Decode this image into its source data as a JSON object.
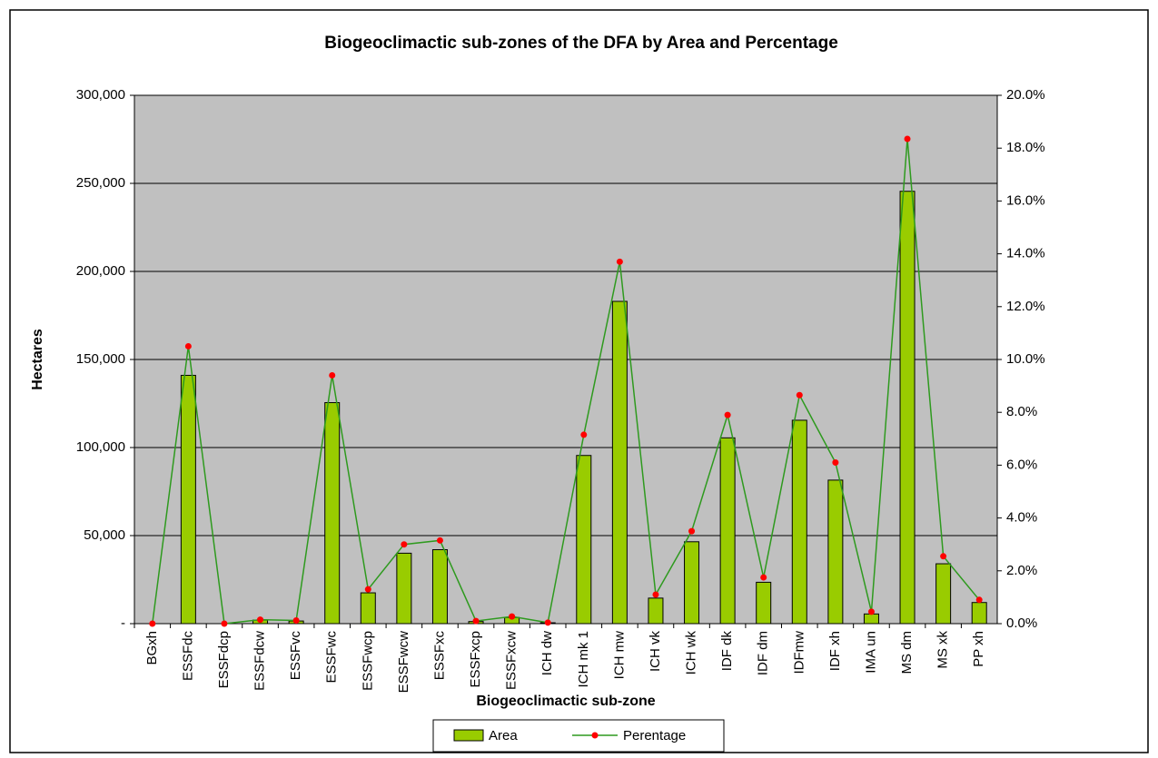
{
  "chart_data": {
    "type": "bar-line",
    "title": "Biogeoclimactic sub-zones of the DFA by Area and Percentage",
    "y_label": "Hectares",
    "x_label": "Biogeoclimactic sub-zone",
    "categories": [
      "BGxh",
      "ESSFdc",
      "ESSFdcp",
      "ESSFdcw",
      "ESSFvc",
      "ESSFwc",
      "ESSFwcp",
      "ESSFwcw",
      "ESSFxc",
      "ESSFxcp",
      "ESSFxcw",
      "ICH dw",
      "ICH mk 1",
      "ICH mw",
      "ICH vk",
      "ICH wk",
      "IDF dk",
      "IDF dm",
      "IDFmw",
      "IDF xh",
      "IMA un",
      "MS dm",
      "MS xk",
      "PP xh"
    ],
    "series": [
      {
        "name": "Area",
        "type": "bar",
        "color": "#99cc00",
        "values": [
          0,
          141000,
          0,
          2000,
          1500,
          125500,
          17500,
          40000,
          42000,
          1200,
          3500,
          500,
          95500,
          183000,
          14500,
          46500,
          105500,
          23500,
          115500,
          81500,
          5500,
          245500,
          34000,
          12000
        ]
      },
      {
        "name": "Perentage",
        "type": "line",
        "axis": "y2",
        "color": "#2e9a1e",
        "marker_color": "#ff0000",
        "values": [
          0,
          10.5,
          0,
          0.15,
          0.12,
          9.4,
          1.3,
          3.0,
          3.15,
          0.1,
          0.27,
          0.04,
          7.15,
          13.7,
          1.1,
          3.5,
          7.9,
          1.75,
          8.65,
          6.1,
          0.45,
          18.35,
          2.55,
          0.9
        ]
      }
    ],
    "ylim": [
      0,
      300000
    ],
    "yticks": [
      {
        "value": 0,
        "label": "-"
      },
      {
        "value": 50000,
        "label": "50,000"
      },
      {
        "value": 100000,
        "label": "100,000"
      },
      {
        "value": 150000,
        "label": "150,000"
      },
      {
        "value": 200000,
        "label": "200,000"
      },
      {
        "value": 250000,
        "label": "250,000"
      },
      {
        "value": 300000,
        "label": "300,000"
      }
    ],
    "y2lim": [
      0,
      20
    ],
    "y2ticks": [
      {
        "value": 0,
        "label": "0.0%"
      },
      {
        "value": 2,
        "label": "2.0%"
      },
      {
        "value": 4,
        "label": "4.0%"
      },
      {
        "value": 6,
        "label": "6.0%"
      },
      {
        "value": 8,
        "label": "8.0%"
      },
      {
        "value": 10,
        "label": "10.0%"
      },
      {
        "value": 12,
        "label": "12.0%"
      },
      {
        "value": 14,
        "label": "14.0%"
      },
      {
        "value": 16,
        "label": "16.0%"
      },
      {
        "value": 18,
        "label": "18.0%"
      },
      {
        "value": 20,
        "label": "20.0%"
      }
    ],
    "grid": true,
    "legend": "bottom"
  }
}
